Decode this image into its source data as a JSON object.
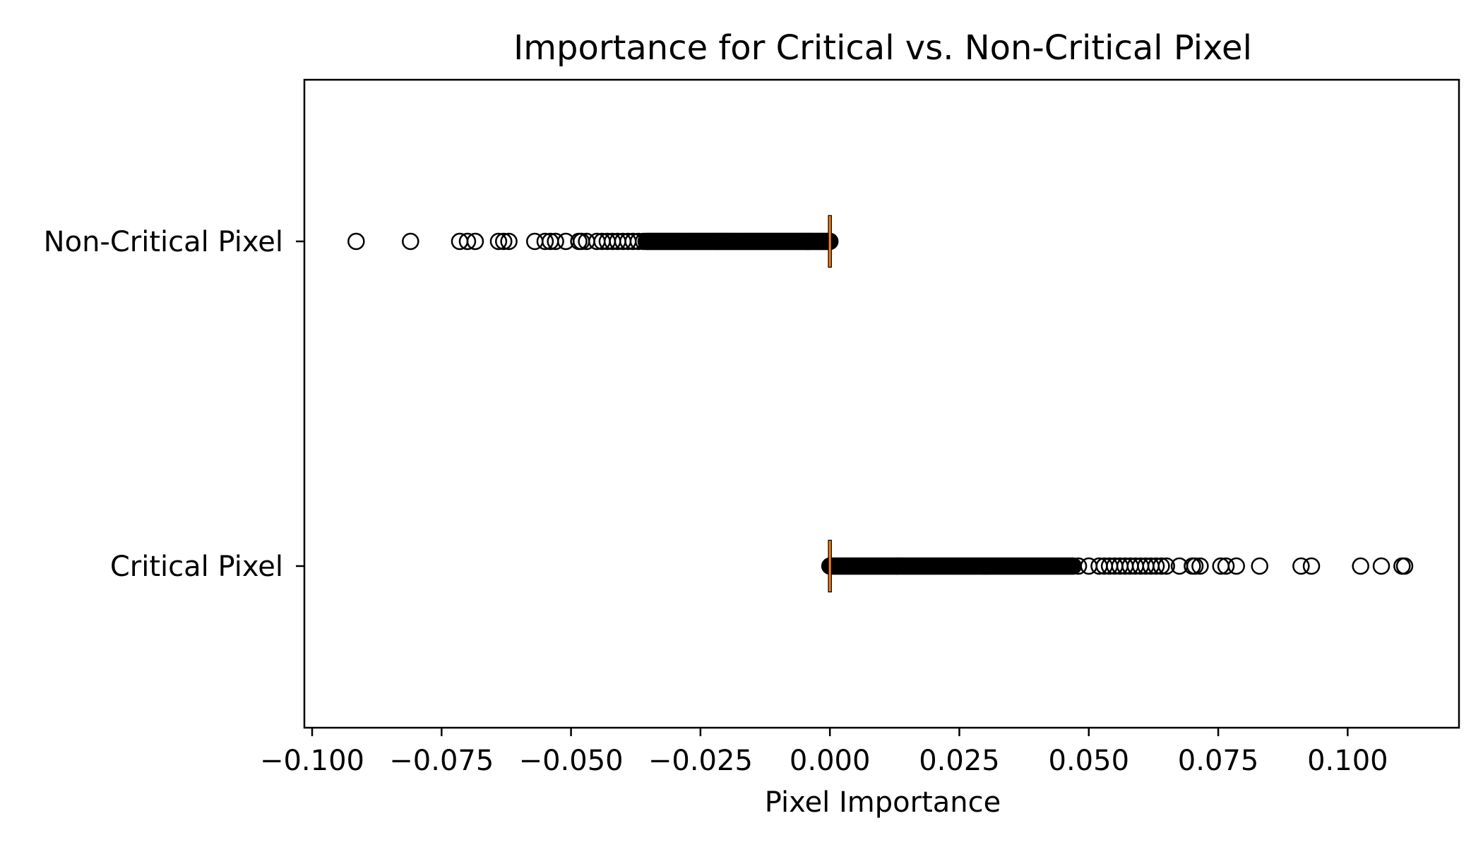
{
  "chart_data": {
    "type": "boxplot",
    "orientation": "horizontal",
    "title": "Importance for Critical vs. Non-Critical Pixel",
    "xlabel": "Pixel Importance",
    "ylabel": "",
    "xlim": [
      -0.1015,
      0.1215
    ],
    "grid": false,
    "x_ticks": [
      -0.1,
      -0.075,
      -0.05,
      -0.025,
      0.0,
      0.025,
      0.05,
      0.075,
      0.1
    ],
    "x_tick_labels": [
      "−0.100",
      "−0.075",
      "−0.050",
      "−0.025",
      "0.000",
      "0.025",
      "0.050",
      "0.075",
      "0.100"
    ],
    "categories": [
      "Critical Pixel",
      "Non-Critical Pixel"
    ],
    "series": [
      {
        "name": "Critical Pixel",
        "box": {
          "whisker_low": 0.0,
          "q1": 0.0,
          "median": 0.0,
          "q3": 0.0,
          "whisker_high": 0.0
        },
        "outlier_range": [
          0.0,
          0.047
        ],
        "outliers": [
          0.048,
          0.05,
          0.052,
          0.053,
          0.054,
          0.055,
          0.056,
          0.057,
          0.058,
          0.059,
          0.06,
          0.061,
          0.062,
          0.063,
          0.064,
          0.065,
          0.0675,
          0.07,
          0.0705,
          0.0715,
          0.0755,
          0.0765,
          0.0785,
          0.083,
          0.091,
          0.093,
          0.1025,
          0.1065,
          0.1105,
          0.111
        ]
      },
      {
        "name": "Non-Critical Pixel",
        "box": {
          "whisker_low": 0.0,
          "q1": 0.0,
          "median": 0.0,
          "q3": 0.0,
          "whisker_high": 0.0
        },
        "outlier_range": [
          -0.0355,
          0.0
        ],
        "outliers": [
          -0.0915,
          -0.081,
          -0.0715,
          -0.07,
          -0.0685,
          -0.064,
          -0.063,
          -0.062,
          -0.057,
          -0.055,
          -0.054,
          -0.053,
          -0.051,
          -0.0485,
          -0.048,
          -0.047,
          -0.045,
          -0.044,
          -0.043,
          -0.042,
          -0.041,
          -0.04,
          -0.039,
          -0.038,
          -0.037,
          -0.036
        ]
      }
    ],
    "colors": {
      "median": "#ff7f0e",
      "box": "#000000",
      "flier": "#000000"
    }
  }
}
